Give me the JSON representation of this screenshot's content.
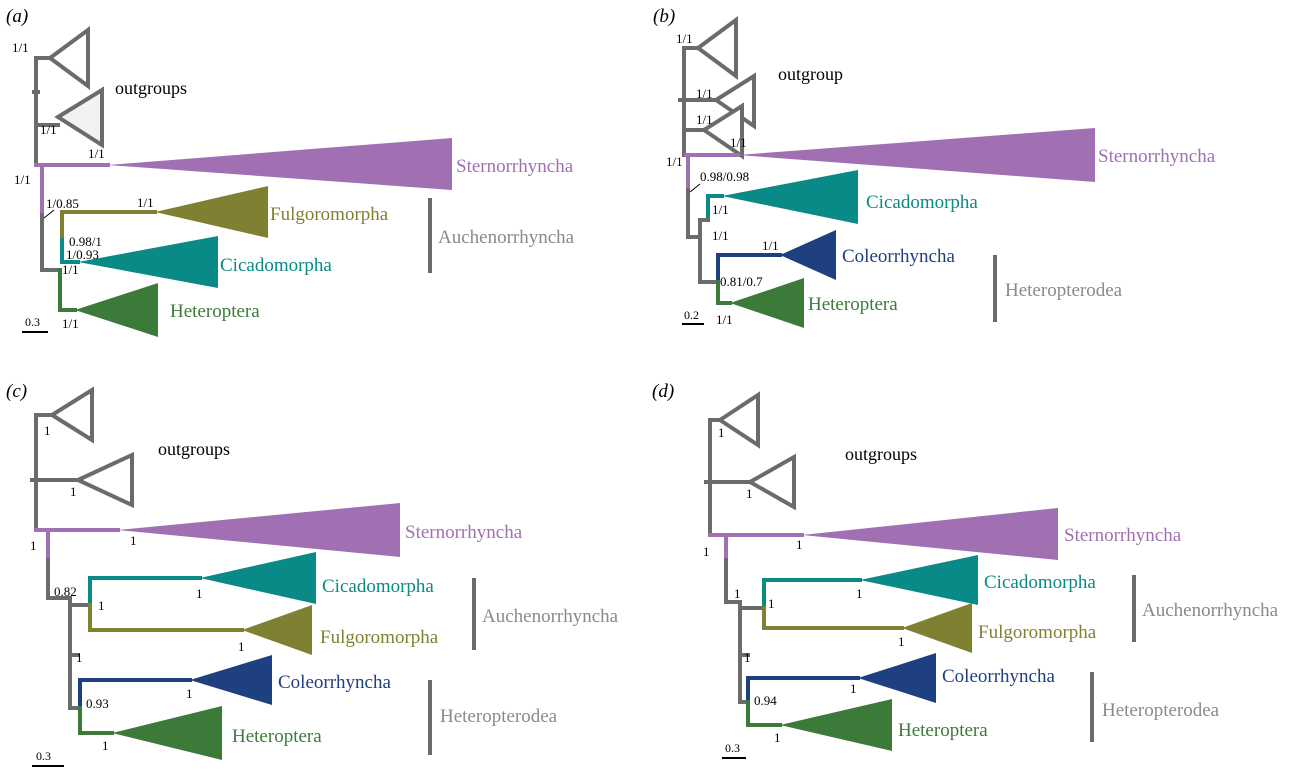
{
  "colors": {
    "outgroup": "#6b6b6b",
    "sternorrhyncha": "#a070b2",
    "fulgoromorpha": "#808032",
    "cicadomorpha": "#0a8a86",
    "heteroptera": "#3b7a38",
    "coleorrhyncha": "#1e3f80",
    "group_label": "#8a8a8a"
  },
  "panels": [
    {
      "label": "(a)",
      "outgroup_label": "outgroups",
      "clades": {
        "sternorrhyncha": "Sternorrhyncha",
        "fulgoromorpha": "Fulgoromorpha",
        "cicadomorpha": "Cicadomorpha",
        "heteroptera": "Heteroptera"
      },
      "supports": {
        "top": "1/1",
        "second": "1/1",
        "stern_node": "1/1",
        "root": "1/1",
        "auch_node": "1/0.85",
        "fulg": "1/1",
        "inner": "1/0.93",
        "cicad": "0.98/1",
        "cicad_node": "1/1",
        "het": "1/1"
      },
      "bracket_labels": [
        "Auchenorrhyncha"
      ],
      "scale": "0.3"
    },
    {
      "label": "(b)",
      "outgroup_label": "outgroup",
      "clades": {
        "sternorrhyncha": "Sternorrhyncha",
        "cicadomorpha": "Cicadomorpha",
        "coleorrhyncha": "Coleorrhyncha",
        "heteroptera": "Heteroptera"
      },
      "supports": {
        "top": "1/1",
        "second": "1/1",
        "third": "1/1",
        "stern_node": "1/1",
        "root": "1/1",
        "cicad_node": "0.98/0.98",
        "cicad": "1/1",
        "inner": "1/1",
        "coleo": "1/1",
        "hetero_node": "0.81/0.7",
        "het": "1/1"
      },
      "bracket_labels": [
        "Heteropterodea"
      ],
      "scale": "0.2"
    },
    {
      "label": "(c)",
      "outgroup_label": "outgroups",
      "clades": {
        "sternorrhyncha": "Sternorrhyncha",
        "cicadomorpha": "Cicadomorpha",
        "fulgoromorpha": "Fulgoromorpha",
        "coleorrhyncha": "Coleorrhyncha",
        "heteroptera": "Heteroptera"
      },
      "supports": {
        "top": "1",
        "second": "1",
        "stern": "1",
        "root": "1",
        "inner_node": "0.82",
        "auch_node": "1",
        "cicad": "1",
        "fulg": "1",
        "heterodea_node": "1",
        "coleo": "1",
        "hetero_node": "0.93",
        "het": "1"
      },
      "bracket_labels": [
        "Auchenorrhyncha",
        "Heteropterodea"
      ],
      "scale": "0.3"
    },
    {
      "label": "(d)",
      "outgroup_label": "outgroups",
      "clades": {
        "sternorrhyncha": "Sternorrhyncha",
        "cicadomorpha": "Cicadomorpha",
        "fulgoromorpha": "Fulgoromorpha",
        "coleorrhyncha": "Coleorrhyncha",
        "heteroptera": "Heteroptera"
      },
      "supports": {
        "top": "1",
        "second": "1",
        "stern": "1",
        "root": "1",
        "auch_node": "1",
        "cicad_node": "1",
        "cicad": "1",
        "fulg": "1",
        "heterodea_node": "1",
        "coleo": "1",
        "hetero_node": "0.94",
        "het": "1"
      },
      "bracket_labels": [
        "Auchenorrhyncha",
        "Heteropterodea"
      ],
      "scale": "0.3"
    }
  ]
}
